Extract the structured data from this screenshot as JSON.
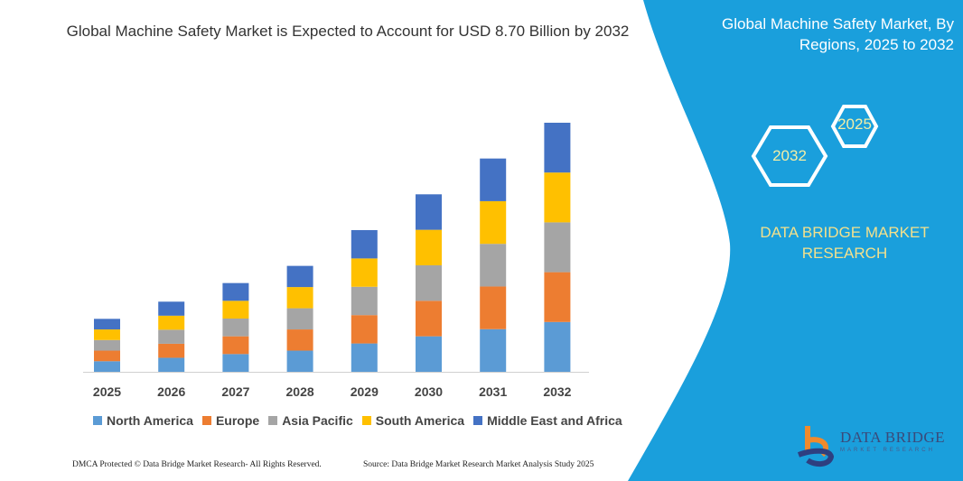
{
  "title": "Global Machine Safety Market is Expected to Account for USD 8.70  Billion by 2032",
  "side_panel": {
    "title": "Global Machine Safety Market, By Regions, 2025 to 2032",
    "hex_start": "2025",
    "hex_end": "2032",
    "brand": "DATA BRIDGE MARKET RESEARCH",
    "logo_text": "DATA BRIDGE",
    "logo_subtext": "MARKET RESEARCH",
    "background_color": "#1a9fdc"
  },
  "footer": {
    "left": "DMCA Protected © Data Bridge Market Research- All Rights Reserved.",
    "right": "Source: Data Bridge Market Research Market Analysis Study 2025"
  },
  "chart_data": {
    "type": "bar",
    "stacked": true,
    "title": "Global Machine Safety Market is Expected to Account for USD 8.70  Billion by 2032",
    "xlabel": "",
    "ylabel": "",
    "y_axis_visible": false,
    "grid": false,
    "legend_position": "bottom",
    "categories": [
      "2025",
      "2026",
      "2027",
      "2028",
      "2029",
      "2030",
      "2031",
      "2032"
    ],
    "series": [
      {
        "name": "North America",
        "color": "#5b9bd5",
        "values": [
          0.37,
          0.49,
          0.62,
          0.74,
          0.99,
          1.24,
          1.49,
          1.74
        ]
      },
      {
        "name": "Europe",
        "color": "#ed7d31",
        "values": [
          0.37,
          0.49,
          0.62,
          0.74,
          0.99,
          1.24,
          1.49,
          1.74
        ]
      },
      {
        "name": "Asia Pacific",
        "color": "#a5a5a5",
        "values": [
          0.37,
          0.49,
          0.62,
          0.74,
          0.99,
          1.24,
          1.49,
          1.74
        ]
      },
      {
        "name": "South America",
        "color": "#ffc000",
        "values": [
          0.37,
          0.49,
          0.62,
          0.74,
          0.99,
          1.24,
          1.49,
          1.74
        ]
      },
      {
        "name": "Middle East and Africa",
        "color": "#4472c4",
        "values": [
          0.37,
          0.49,
          0.62,
          0.74,
          0.99,
          1.24,
          1.49,
          1.74
        ]
      }
    ],
    "ylim": [
      0,
      8.7
    ]
  }
}
